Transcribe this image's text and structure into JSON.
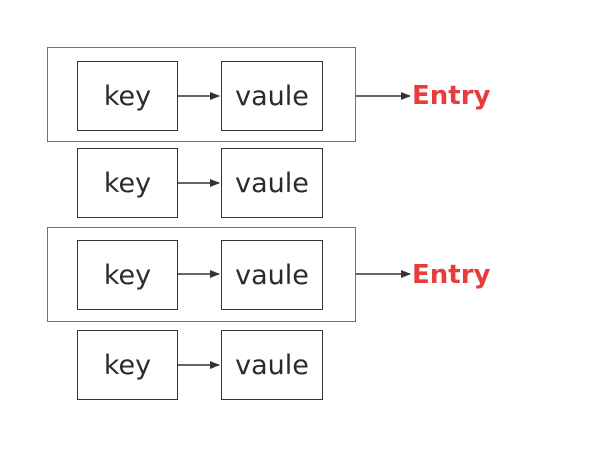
{
  "rows": [
    {
      "key": "key",
      "value": "vaule"
    },
    {
      "key": "key",
      "value": "vaule"
    },
    {
      "key": "key",
      "value": "vaule"
    },
    {
      "key": "key",
      "value": "vaule"
    }
  ],
  "entries": [
    {
      "label": "Entry"
    },
    {
      "label": "Entry"
    }
  ],
  "colors": {
    "highlight": "#e63c3c",
    "stroke": "#333333",
    "text": "#2b2b2b"
  }
}
